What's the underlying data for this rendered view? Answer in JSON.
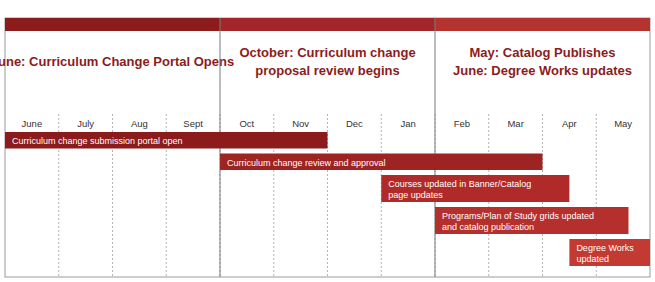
{
  "chart_data": {
    "type": "gantt",
    "headers": [
      {
        "lines": [
          "June: Curriculum Change Portal Opens"
        ],
        "span": [
          0,
          4
        ],
        "color": "#8c1c1c"
      },
      {
        "lines": [
          "October: Curriculum change",
          "proposal review begins"
        ],
        "span": [
          4,
          8
        ],
        "color": "#a3262a"
      },
      {
        "lines": [
          "May: Catalog Publishes",
          "June: Degree Works updates"
        ],
        "span": [
          8,
          12
        ],
        "color": "#b5332e"
      }
    ],
    "categories": [
      "June",
      "July",
      "Aug",
      "Sept",
      "Oct",
      "Nov",
      "Dec",
      "Jan",
      "Feb",
      "Mar",
      "Apr",
      "May"
    ],
    "xlim": [
      0,
      12
    ],
    "tasks": [
      {
        "label": [
          "Curriculum change submission portal open"
        ],
        "start": 0,
        "end": 6,
        "color": "#8c1c1c"
      },
      {
        "label": [
          "Curriculum change review and approval"
        ],
        "start": 4,
        "end": 10,
        "color": "#9e2424"
      },
      {
        "label": [
          "Courses updated in Banner/Catalog",
          "page updates"
        ],
        "start": 7,
        "end": 10.5,
        "color": "#b02a2a"
      },
      {
        "label": [
          "Programs/Plan of Study grids updated",
          "and catalog publication"
        ],
        "start": 8,
        "end": 11.6,
        "color": "#b5302c"
      },
      {
        "label": [
          "Degree Works",
          "updated"
        ],
        "start": 10.5,
        "end": 12,
        "color": "#c23a32"
      }
    ]
  }
}
